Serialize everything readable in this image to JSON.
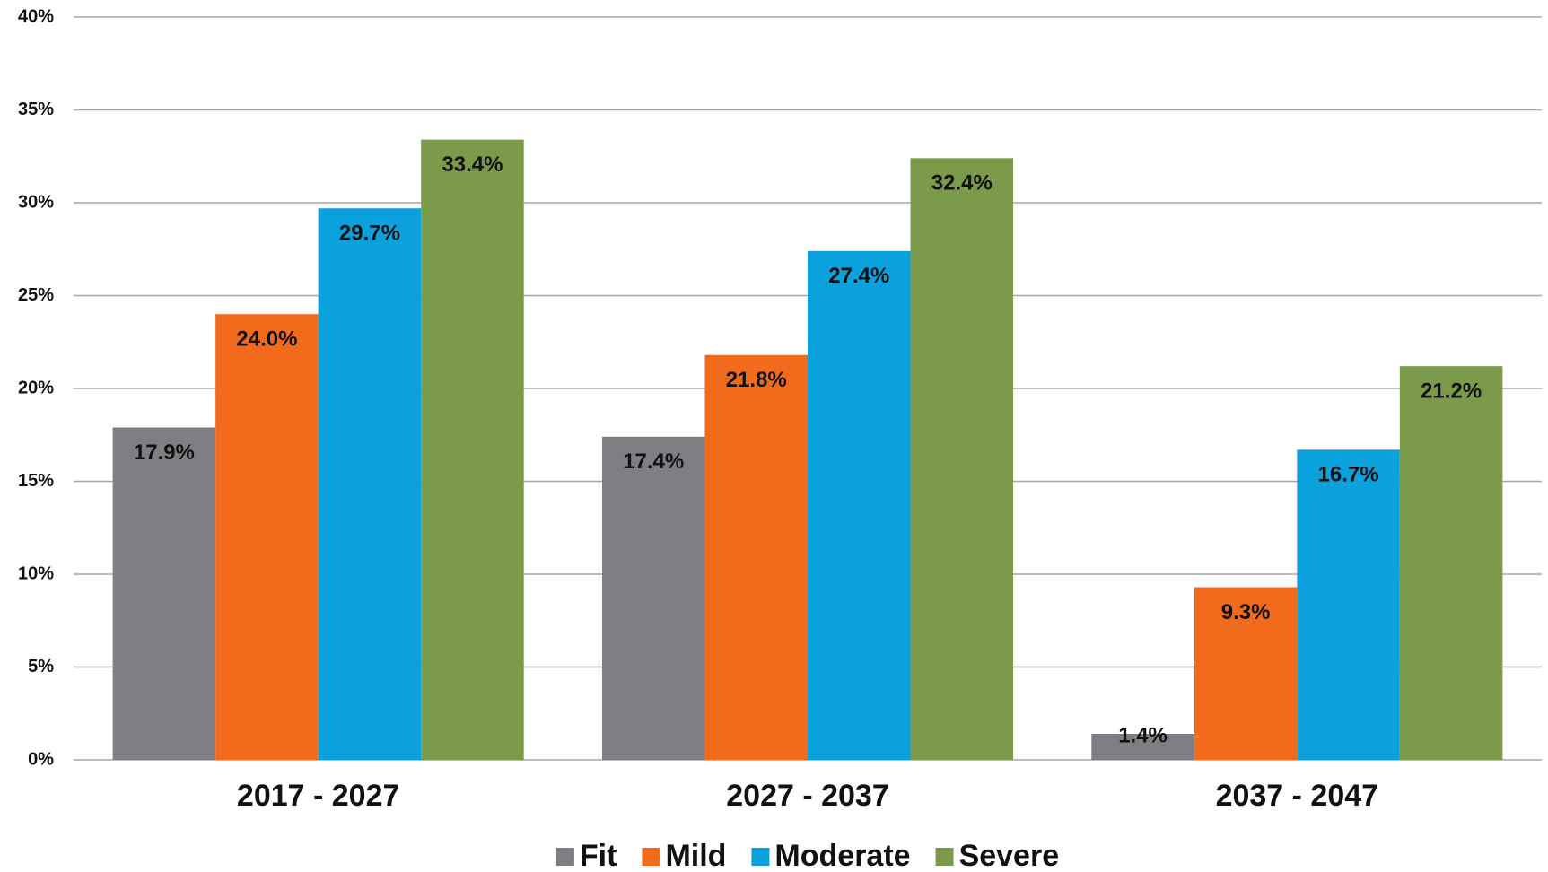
{
  "chart_data": {
    "type": "bar",
    "categories": [
      "2017 - 2027",
      "2027 - 2037",
      "2037 - 2047"
    ],
    "series": [
      {
        "name": "Fit",
        "color": "#7f7f83",
        "values": [
          17.9,
          17.4,
          1.4
        ],
        "value_labels": [
          "17.9%",
          "17.4%",
          "1.4%"
        ]
      },
      {
        "name": "Mild",
        "color": "#f26b1d",
        "values": [
          24.0,
          21.8,
          9.3
        ],
        "value_labels": [
          "24.0%",
          "21.8%",
          "9.3%"
        ]
      },
      {
        "name": "Moderate",
        "color": "#0ba1dc",
        "values": [
          29.7,
          27.4,
          16.7
        ],
        "value_labels": [
          "29.7%",
          "27.4%",
          "16.7%"
        ]
      },
      {
        "name": "Severe",
        "color": "#7b9a4a",
        "values": [
          33.4,
          32.4,
          21.2
        ],
        "value_labels": [
          "33.4%",
          "32.4%",
          "21.2%"
        ]
      }
    ],
    "ylim": [
      0,
      40
    ],
    "yticks": [
      {
        "value": 0,
        "label": "0%"
      },
      {
        "value": 5,
        "label": "5%"
      },
      {
        "value": 10,
        "label": "10%"
      },
      {
        "value": 15,
        "label": "15%"
      },
      {
        "value": 20,
        "label": "20%"
      },
      {
        "value": 25,
        "label": "25%"
      },
      {
        "value": 30,
        "label": "30%"
      },
      {
        "value": 35,
        "label": "35%"
      },
      {
        "value": 40,
        "label": "40%"
      }
    ],
    "grid": true,
    "legend": "bottom"
  }
}
